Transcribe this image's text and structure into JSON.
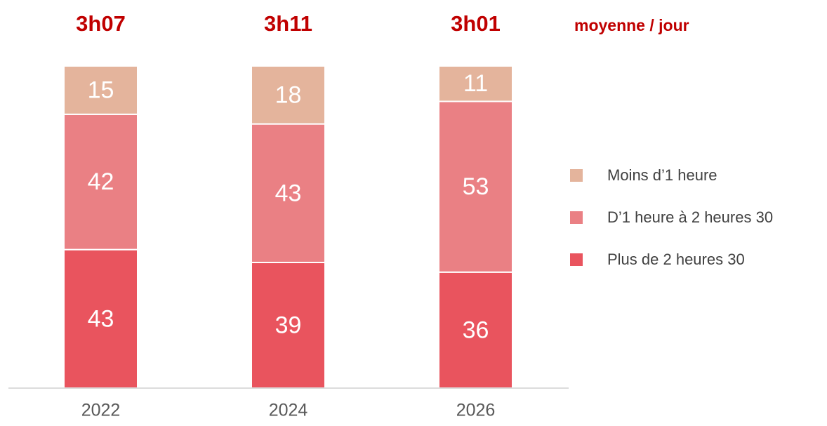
{
  "chart_data": {
    "type": "stacked_bar",
    "categories": [
      "2022",
      "2024",
      "2026"
    ],
    "averages": [
      "3h07",
      "3h11",
      "3h01"
    ],
    "averages_label": "moyenne / jour",
    "series": [
      {
        "name": "Plus de 2 heures 30",
        "color": "#e9545e",
        "values": [
          43,
          39,
          36
        ]
      },
      {
        "name": "D’1 heure à 2 heures 30",
        "color": "#ea8084",
        "values": [
          42,
          43,
          53
        ]
      },
      {
        "name": "Moins d’1 heure",
        "color": "#e4b49c",
        "values": [
          15,
          18,
          11
        ]
      }
    ]
  }
}
